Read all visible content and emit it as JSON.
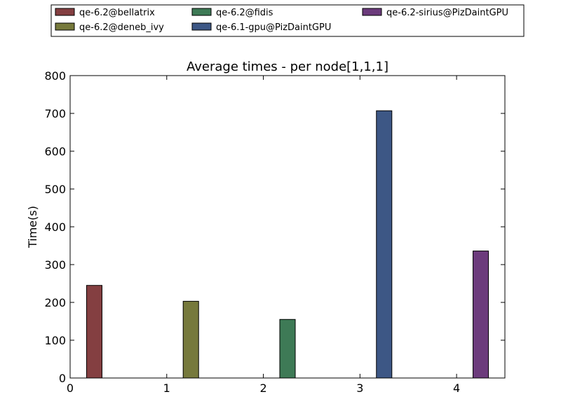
{
  "chart_data": {
    "type": "bar",
    "title": "Average times - per node[1,1,1]",
    "xlabel": "",
    "ylabel": "Time(s)",
    "xlim": [
      0,
      4.5
    ],
    "ylim": [
      0,
      800
    ],
    "x_ticks": [
      "0",
      "1",
      "2",
      "3",
      "4"
    ],
    "y_ticks": [
      "0",
      "100",
      "200",
      "300",
      "400",
      "500",
      "600",
      "700",
      "800"
    ],
    "grid": false,
    "legend_position": "top",
    "series": [
      {
        "name": "qe-6.2@bellatrix",
        "x": 0.25,
        "value": 245,
        "color": "#843f41"
      },
      {
        "name": "qe-6.2@deneb_ivy",
        "x": 1.25,
        "value": 203,
        "color": "#76793c"
      },
      {
        "name": "qe-6.2@fidis",
        "x": 2.25,
        "value": 155,
        "color": "#3e7a56"
      },
      {
        "name": "qe-6.1-gpu@PizDaintGPU",
        "x": 3.25,
        "value": 707,
        "color": "#3d5785"
      },
      {
        "name": "qe-6.2-sirius@PizDaintGPU",
        "x": 4.25,
        "value": 336,
        "color": "#6c3b7c"
      }
    ]
  }
}
